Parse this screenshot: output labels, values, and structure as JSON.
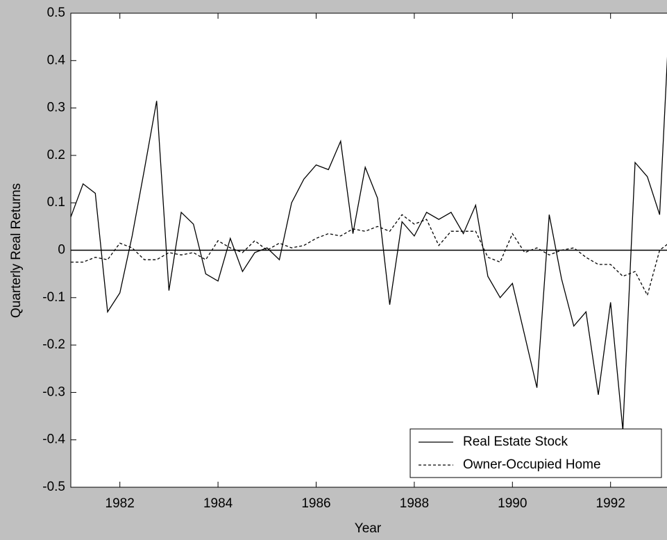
{
  "chart_data": {
    "type": "line",
    "xlabel": "Year",
    "ylabel": "Quarterly Real Returns",
    "x": [
      1981.0,
      1981.25,
      1981.5,
      1981.75,
      1982.0,
      1982.25,
      1982.5,
      1982.75,
      1983.0,
      1983.25,
      1983.5,
      1983.75,
      1984.0,
      1984.25,
      1984.5,
      1984.75,
      1985.0,
      1985.25,
      1985.5,
      1985.75,
      1986.0,
      1986.25,
      1986.5,
      1986.75,
      1987.0,
      1987.25,
      1987.5,
      1987.75,
      1988.0,
      1988.25,
      1988.5,
      1988.75,
      1989.0,
      1989.25,
      1989.5,
      1989.75,
      1990.0,
      1990.25,
      1990.5,
      1990.75,
      1991.0,
      1991.25,
      1991.5,
      1991.75,
      1992.0,
      1992.25,
      1992.5,
      1992.75,
      1993.0,
      1993.25
    ],
    "series": [
      {
        "name": "Real Estate Stock",
        "color": "#000000",
        "dash": "solid",
        "values": [
          0.07,
          0.14,
          0.12,
          -0.13,
          -0.09,
          0.03,
          0.17,
          0.315,
          -0.085,
          0.08,
          0.055,
          -0.05,
          -0.065,
          0.025,
          -0.045,
          -0.005,
          0.005,
          -0.02,
          0.1,
          0.15,
          0.18,
          0.17,
          0.23,
          0.035,
          0.175,
          0.11,
          -0.115,
          0.06,
          0.03,
          0.08,
          0.065,
          0.08,
          0.035,
          0.095,
          -0.055,
          -0.1,
          -0.07,
          -0.18,
          -0.29,
          0.075,
          -0.06,
          -0.16,
          -0.13,
          -0.305,
          -0.11,
          -0.38,
          0.185,
          0.155,
          0.075,
          0.6
        ]
      },
      {
        "name": "Owner-Occupied Home",
        "color": "#000000",
        "dash": "dashed",
        "values": [
          -0.025,
          -0.025,
          -0.015,
          -0.02,
          0.015,
          0.005,
          -0.02,
          -0.02,
          -0.005,
          -0.01,
          -0.005,
          -0.02,
          0.02,
          0.005,
          -0.005,
          0.02,
          0.0,
          0.015,
          0.005,
          0.01,
          0.025,
          0.035,
          0.03,
          0.045,
          0.04,
          0.05,
          0.04,
          0.075,
          0.055,
          0.065,
          0.01,
          0.04,
          0.04,
          0.04,
          -0.015,
          -0.025,
          0.035,
          -0.005,
          0.005,
          -0.01,
          0.0,
          0.005,
          -0.015,
          -0.03,
          -0.03,
          -0.055,
          -0.045,
          -0.095,
          0.0,
          0.02
        ]
      }
    ],
    "xlim": [
      1981,
      1993.15
    ],
    "ylim": [
      -0.5,
      0.5
    ],
    "xticks": [
      1982,
      1984,
      1986,
      1988,
      1990,
      1992
    ],
    "yticks": [
      -0.5,
      -0.4,
      -0.3,
      -0.2,
      -0.1,
      0,
      0.1,
      0.2,
      0.3,
      0.4,
      0.5
    ],
    "legend": "lower right"
  }
}
